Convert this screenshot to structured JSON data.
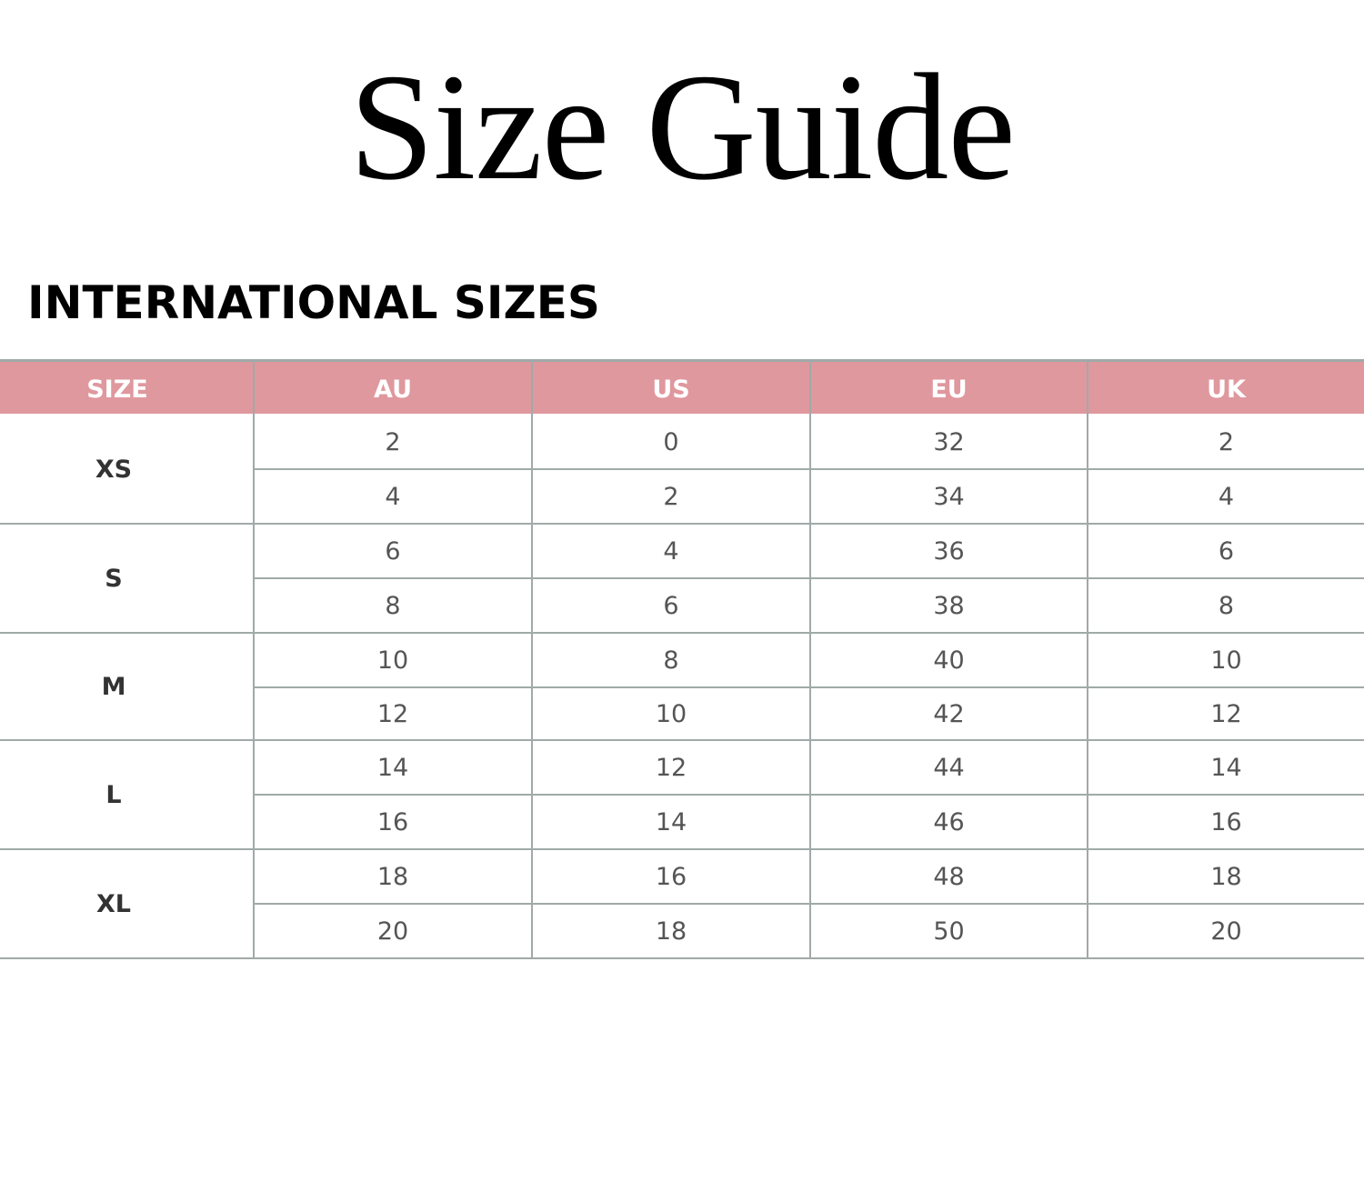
{
  "title": "Size Guide",
  "subtitle": "INTERNATIONAL SIZES",
  "colors": {
    "header_bg": "#df989e",
    "header_text": "#ffffff",
    "grid": "#a0aaa8"
  },
  "table": {
    "headers": [
      "SIZE",
      "AU",
      "US",
      "EU",
      "UK"
    ],
    "groups": [
      {
        "size": "XS",
        "rows": [
          [
            "2",
            "0",
            "32",
            "2"
          ],
          [
            "4",
            "2",
            "34",
            "4"
          ]
        ]
      },
      {
        "size": "S",
        "rows": [
          [
            "6",
            "4",
            "36",
            "6"
          ],
          [
            "8",
            "6",
            "38",
            "8"
          ]
        ]
      },
      {
        "size": "M",
        "rows": [
          [
            "10",
            "8",
            "40",
            "10"
          ],
          [
            "12",
            "10",
            "42",
            "12"
          ]
        ]
      },
      {
        "size": "L",
        "rows": [
          [
            "14",
            "12",
            "44",
            "14"
          ],
          [
            "16",
            "14",
            "46",
            "16"
          ]
        ]
      },
      {
        "size": "XL",
        "rows": [
          [
            "18",
            "16",
            "48",
            "18"
          ],
          [
            "20",
            "18",
            "50",
            "20"
          ]
        ]
      }
    ]
  }
}
